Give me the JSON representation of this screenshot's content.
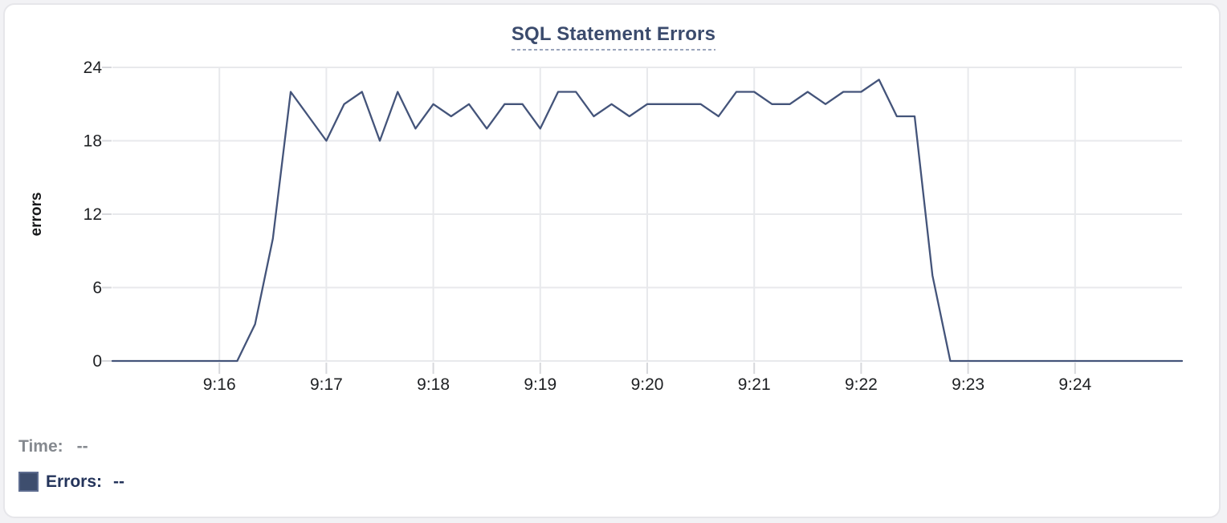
{
  "chart_data": {
    "type": "line",
    "title": "SQL Statement Errors",
    "ylabel": "errors",
    "xlabel": "",
    "ylim": [
      0,
      24
    ],
    "y_ticks": [
      0,
      6,
      12,
      18,
      24
    ],
    "x_ticks": [
      "9:16",
      "9:17",
      "9:18",
      "9:19",
      "9:20",
      "9:21",
      "9:22",
      "9:23",
      "9:24"
    ],
    "grid": true,
    "line_color": "#44547a",
    "legend_position": "bottom-left",
    "series": [
      {
        "name": "Errors",
        "x": [
          "9:15:00",
          "9:15:10",
          "9:15:20",
          "9:15:30",
          "9:15:40",
          "9:15:50",
          "9:16:00",
          "9:16:10",
          "9:16:20",
          "9:16:30",
          "9:16:40",
          "9:16:50",
          "9:17:00",
          "9:17:10",
          "9:17:20",
          "9:17:30",
          "9:17:40",
          "9:17:50",
          "9:18:00",
          "9:18:10",
          "9:18:20",
          "9:18:30",
          "9:18:40",
          "9:18:50",
          "9:19:00",
          "9:19:10",
          "9:19:20",
          "9:19:30",
          "9:19:40",
          "9:19:50",
          "9:20:00",
          "9:20:10",
          "9:20:20",
          "9:20:30",
          "9:20:40",
          "9:20:50",
          "9:21:00",
          "9:21:10",
          "9:21:20",
          "9:21:30",
          "9:21:40",
          "9:21:50",
          "9:22:00",
          "9:22:10",
          "9:22:20",
          "9:22:30",
          "9:22:40",
          "9:22:50",
          "9:23:00",
          "9:23:10",
          "9:23:20",
          "9:23:30",
          "9:23:40",
          "9:23:50",
          "9:24:00",
          "9:24:10",
          "9:24:20",
          "9:24:30",
          "9:24:40",
          "9:24:50",
          "9:25:00"
        ],
        "values": [
          0,
          0,
          0,
          0,
          0,
          0,
          0,
          0,
          3,
          10,
          22,
          20,
          18,
          21,
          22,
          18,
          22,
          19,
          21,
          20,
          21,
          19,
          21,
          21,
          19,
          22,
          22,
          20,
          21,
          20,
          21,
          21,
          21,
          21,
          20,
          22,
          22,
          21,
          21,
          22,
          21,
          22,
          22,
          23,
          20,
          20,
          7,
          0,
          0,
          0,
          0,
          0,
          0,
          0,
          0,
          0,
          0,
          0,
          0,
          0,
          0
        ]
      }
    ]
  },
  "legend": {
    "time_label": "Time:",
    "time_value": "--",
    "errors_label": "Errors:",
    "errors_value": "--",
    "swatch_color": "#3e4e6e"
  }
}
